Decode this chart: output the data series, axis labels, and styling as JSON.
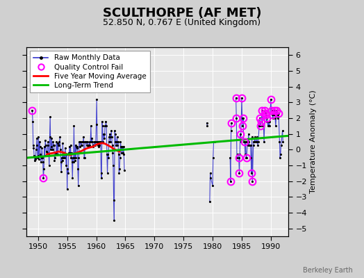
{
  "title": "SCULTHORPE (AF MET)",
  "subtitle": "52.850 N, 0.767 E (United Kingdom)",
  "ylabel": "Temperature Anomaly (°C)",
  "watermark": "Berkeley Earth",
  "xlim": [
    1948,
    1993
  ],
  "ylim": [
    -5.5,
    6.5
  ],
  "yticks": [
    -5,
    -4,
    -3,
    -2,
    -1,
    0,
    1,
    2,
    3,
    4,
    5,
    6
  ],
  "xticks": [
    1950,
    1955,
    1960,
    1965,
    1970,
    1975,
    1980,
    1985,
    1990
  ],
  "bg_color": "#d0d0d0",
  "plot_bg_color": "#e8e8e8",
  "grid_color": "white",
  "raw_color": "#3333cc",
  "qc_color": "#ff00ff",
  "ma_color": "red",
  "trend_color": "#00bb00",
  "raw_monthly": [
    [
      1949.0,
      2.5
    ],
    [
      1949.083,
      1.8
    ],
    [
      1949.167,
      0.3
    ],
    [
      1949.25,
      0.1
    ],
    [
      1949.333,
      -0.4
    ],
    [
      1949.417,
      -0.7
    ],
    [
      1949.5,
      -0.6
    ],
    [
      1949.583,
      -0.5
    ],
    [
      1949.667,
      0.0
    ],
    [
      1949.75,
      0.3
    ],
    [
      1949.833,
      0.7
    ],
    [
      1949.917,
      -0.5
    ],
    [
      1950.0,
      -0.4
    ],
    [
      1950.083,
      0.8
    ],
    [
      1950.167,
      -0.6
    ],
    [
      1950.25,
      0.5
    ],
    [
      1950.333,
      0.2
    ],
    [
      1950.417,
      -0.3
    ],
    [
      1950.5,
      -0.8
    ],
    [
      1950.583,
      -0.5
    ],
    [
      1950.667,
      0.1
    ],
    [
      1950.75,
      -0.5
    ],
    [
      1950.833,
      -0.8
    ],
    [
      1950.917,
      -1.8
    ],
    [
      1951.0,
      -1.2
    ],
    [
      1951.083,
      0.2
    ],
    [
      1951.167,
      -0.4
    ],
    [
      1951.25,
      0.6
    ],
    [
      1951.333,
      0.3
    ],
    [
      1951.417,
      -0.1
    ],
    [
      1951.5,
      -0.1
    ],
    [
      1951.583,
      -0.2
    ],
    [
      1951.667,
      0.3
    ],
    [
      1951.75,
      0.5
    ],
    [
      1951.833,
      -0.3
    ],
    [
      1951.917,
      -1.0
    ],
    [
      1952.0,
      0.8
    ],
    [
      1952.083,
      2.1
    ],
    [
      1952.167,
      0.0
    ],
    [
      1952.25,
      0.2
    ],
    [
      1952.333,
      0.7
    ],
    [
      1952.417,
      0.0
    ],
    [
      1952.5,
      0.0
    ],
    [
      1952.583,
      0.5
    ],
    [
      1952.667,
      0.3
    ],
    [
      1952.75,
      0.3
    ],
    [
      1952.833,
      -0.7
    ],
    [
      1952.917,
      -0.5
    ],
    [
      1953.0,
      -0.2
    ],
    [
      1953.083,
      -0.3
    ],
    [
      1953.167,
      0.5
    ],
    [
      1953.25,
      -0.3
    ],
    [
      1953.333,
      0.4
    ],
    [
      1953.417,
      -0.3
    ],
    [
      1953.5,
      0.3
    ],
    [
      1953.583,
      0.5
    ],
    [
      1953.667,
      0.3
    ],
    [
      1953.75,
      0.8
    ],
    [
      1953.833,
      0.0
    ],
    [
      1953.917,
      -0.8
    ],
    [
      1954.0,
      -1.4
    ],
    [
      1954.083,
      -0.5
    ],
    [
      1954.167,
      -0.7
    ],
    [
      1954.25,
      0.4
    ],
    [
      1954.333,
      -0.5
    ],
    [
      1954.417,
      -0.2
    ],
    [
      1954.5,
      -0.3
    ],
    [
      1954.583,
      -0.5
    ],
    [
      1954.667,
      0.1
    ],
    [
      1954.75,
      -0.3
    ],
    [
      1954.833,
      -1.0
    ],
    [
      1954.917,
      -0.3
    ],
    [
      1955.0,
      -2.5
    ],
    [
      1955.083,
      -1.2
    ],
    [
      1955.167,
      -1.5
    ],
    [
      1955.25,
      -0.2
    ],
    [
      1955.333,
      -0.3
    ],
    [
      1955.417,
      0.2
    ],
    [
      1955.5,
      -0.2
    ],
    [
      1955.583,
      0.3
    ],
    [
      1955.667,
      -0.5
    ],
    [
      1955.75,
      -0.2
    ],
    [
      1955.833,
      -0.8
    ],
    [
      1955.917,
      -1.8
    ],
    [
      1956.0,
      -0.5
    ],
    [
      1956.083,
      -0.8
    ],
    [
      1956.167,
      1.5
    ],
    [
      1956.25,
      -0.5
    ],
    [
      1956.333,
      -0.7
    ],
    [
      1956.417,
      0.3
    ],
    [
      1956.5,
      -0.5
    ],
    [
      1956.583,
      0.2
    ],
    [
      1956.667,
      0.1
    ],
    [
      1956.75,
      0.2
    ],
    [
      1956.833,
      -1.2
    ],
    [
      1956.917,
      -2.3
    ],
    [
      1957.0,
      -0.5
    ],
    [
      1957.083,
      0.5
    ],
    [
      1957.167,
      0.2
    ],
    [
      1957.25,
      0.5
    ],
    [
      1957.333,
      0.5
    ],
    [
      1957.417,
      0.3
    ],
    [
      1957.5,
      0.3
    ],
    [
      1957.583,
      0.5
    ],
    [
      1957.667,
      0.5
    ],
    [
      1957.75,
      0.5
    ],
    [
      1957.833,
      0.8
    ],
    [
      1957.917,
      -0.5
    ],
    [
      1958.0,
      -0.5
    ],
    [
      1958.083,
      0.5
    ],
    [
      1958.167,
      0.5
    ],
    [
      1958.25,
      0.5
    ],
    [
      1958.333,
      0.3
    ],
    [
      1958.417,
      0.5
    ],
    [
      1958.5,
      0.5
    ],
    [
      1958.583,
      0.3
    ],
    [
      1958.667,
      0.2
    ],
    [
      1958.75,
      0.2
    ],
    [
      1958.833,
      0.5
    ],
    [
      1958.917,
      0.3
    ],
    [
      1959.0,
      0.5
    ],
    [
      1959.083,
      1.5
    ],
    [
      1959.167,
      0.5
    ],
    [
      1959.25,
      0.7
    ],
    [
      1959.333,
      0.5
    ],
    [
      1959.417,
      0.2
    ],
    [
      1959.5,
      0.3
    ],
    [
      1959.583,
      0.3
    ],
    [
      1959.667,
      0.5
    ],
    [
      1959.75,
      0.5
    ],
    [
      1959.833,
      0.3
    ],
    [
      1959.917,
      0.5
    ],
    [
      1960.0,
      1.6
    ],
    [
      1960.083,
      3.2
    ],
    [
      1960.167,
      0.5
    ],
    [
      1960.25,
      0.3
    ],
    [
      1960.333,
      0.5
    ],
    [
      1960.417,
      0.2
    ],
    [
      1960.5,
      0.5
    ],
    [
      1960.583,
      0.3
    ],
    [
      1960.667,
      0.5
    ],
    [
      1960.75,
      0.5
    ],
    [
      1960.833,
      -1.5
    ],
    [
      1960.917,
      -1.8
    ],
    [
      1961.0,
      1.8
    ],
    [
      1961.083,
      1.5
    ],
    [
      1961.167,
      0.5
    ],
    [
      1961.25,
      1.0
    ],
    [
      1961.333,
      1.0
    ],
    [
      1961.417,
      0.7
    ],
    [
      1961.5,
      1.5
    ],
    [
      1961.583,
      1.5
    ],
    [
      1961.667,
      1.8
    ],
    [
      1961.75,
      1.5
    ],
    [
      1961.833,
      -0.3
    ],
    [
      1961.917,
      -1.5
    ],
    [
      1962.0,
      -0.3
    ],
    [
      1962.083,
      -0.5
    ],
    [
      1962.167,
      0.5
    ],
    [
      1962.25,
      0.8
    ],
    [
      1962.333,
      1.0
    ],
    [
      1962.417,
      0.5
    ],
    [
      1962.5,
      0.8
    ],
    [
      1962.583,
      1.2
    ],
    [
      1962.667,
      0.8
    ],
    [
      1962.75,
      0.3
    ],
    [
      1962.833,
      -0.2
    ],
    [
      1962.917,
      -1.0
    ],
    [
      1963.0,
      -3.2
    ],
    [
      1963.083,
      -4.5
    ],
    [
      1963.167,
      1.2
    ],
    [
      1963.25,
      1.0
    ],
    [
      1963.333,
      0.5
    ],
    [
      1963.417,
      0.3
    ],
    [
      1963.5,
      0.5
    ],
    [
      1963.583,
      0.8
    ],
    [
      1963.667,
      0.3
    ],
    [
      1963.75,
      0.5
    ],
    [
      1963.833,
      -0.3
    ],
    [
      1963.917,
      -1.5
    ],
    [
      1964.0,
      -1.2
    ],
    [
      1964.083,
      -0.5
    ],
    [
      1964.167,
      0.5
    ],
    [
      1964.25,
      0.2
    ],
    [
      1964.333,
      -0.2
    ],
    [
      1964.417,
      0.2
    ],
    [
      1964.5,
      0.2
    ],
    [
      1964.583,
      -0.2
    ],
    [
      1964.667,
      0.2
    ],
    [
      1964.75,
      -0.3
    ],
    [
      1964.833,
      -1.3
    ],
    [
      1979.0,
      1.7
    ],
    [
      1979.083,
      1.5
    ],
    [
      1979.5,
      -3.3
    ],
    [
      1979.583,
      -1.5
    ],
    [
      1979.667,
      -1.8
    ],
    [
      1980.0,
      -2.3
    ],
    [
      1980.083,
      -0.5
    ],
    [
      1980.167,
      0.5
    ],
    [
      1980.25,
      0.5
    ],
    [
      1980.333,
      0.5
    ],
    [
      1983.0,
      -0.5
    ],
    [
      1983.083,
      -2.0
    ],
    [
      1983.167,
      1.2
    ],
    [
      1983.25,
      1.7
    ],
    [
      1984.0,
      3.3
    ],
    [
      1984.083,
      2.0
    ],
    [
      1984.167,
      -0.5
    ],
    [
      1984.25,
      -0.3
    ],
    [
      1984.333,
      -0.3
    ],
    [
      1984.5,
      -0.5
    ],
    [
      1984.583,
      -1.5
    ],
    [
      1984.667,
      -0.3
    ],
    [
      1984.75,
      1.0
    ],
    [
      1984.833,
      0.5
    ],
    [
      1985.0,
      3.3
    ],
    [
      1985.083,
      2.0
    ],
    [
      1985.167,
      1.5
    ],
    [
      1985.25,
      2.0
    ],
    [
      1985.333,
      0.5
    ],
    [
      1985.5,
      0.5
    ],
    [
      1985.583,
      -0.3
    ],
    [
      1985.667,
      0.5
    ],
    [
      1985.75,
      -0.5
    ],
    [
      1985.833,
      -0.5
    ],
    [
      1986.0,
      0.5
    ],
    [
      1986.083,
      0.3
    ],
    [
      1986.167,
      1.0
    ],
    [
      1986.25,
      0.5
    ],
    [
      1986.333,
      0.3
    ],
    [
      1986.5,
      0.3
    ],
    [
      1986.583,
      -0.5
    ],
    [
      1986.667,
      -1.5
    ],
    [
      1986.75,
      0.8
    ],
    [
      1986.833,
      -2.0
    ],
    [
      1987.0,
      0.3
    ],
    [
      1987.083,
      0.5
    ],
    [
      1987.167,
      0.5
    ],
    [
      1987.25,
      0.8
    ],
    [
      1987.333,
      0.5
    ],
    [
      1987.5,
      0.5
    ],
    [
      1987.583,
      0.8
    ],
    [
      1987.667,
      0.5
    ],
    [
      1987.75,
      0.3
    ],
    [
      1987.833,
      0.5
    ],
    [
      1988.0,
      1.5
    ],
    [
      1988.083,
      2.0
    ],
    [
      1988.167,
      1.5
    ],
    [
      1988.25,
      1.5
    ],
    [
      1988.333,
      1.8
    ],
    [
      1988.5,
      2.5
    ],
    [
      1988.583,
      1.5
    ],
    [
      1988.667,
      1.5
    ],
    [
      1988.75,
      1.5
    ],
    [
      1988.833,
      0.5
    ],
    [
      1989.0,
      2.5
    ],
    [
      1989.083,
      2.3
    ],
    [
      1989.167,
      2.2
    ],
    [
      1989.25,
      1.8
    ],
    [
      1989.333,
      2.0
    ],
    [
      1989.5,
      1.5
    ],
    [
      1989.583,
      1.8
    ],
    [
      1989.667,
      1.5
    ],
    [
      1989.75,
      1.5
    ],
    [
      1989.833,
      1.8
    ],
    [
      1990.0,
      3.2
    ],
    [
      1990.083,
      2.5
    ],
    [
      1990.167,
      2.5
    ],
    [
      1990.25,
      2.2
    ],
    [
      1990.333,
      2.0
    ],
    [
      1990.5,
      2.2
    ],
    [
      1990.583,
      2.5
    ],
    [
      1990.667,
      2.2
    ],
    [
      1990.75,
      2.0
    ],
    [
      1990.833,
      1.5
    ],
    [
      1991.0,
      2.5
    ],
    [
      1991.083,
      2.2
    ],
    [
      1991.167,
      2.0
    ],
    [
      1991.25,
      2.2
    ],
    [
      1991.333,
      2.3
    ],
    [
      1991.5,
      0.5
    ],
    [
      1991.583,
      -0.5
    ],
    [
      1991.667,
      -0.3
    ],
    [
      1991.75,
      0.3
    ],
    [
      1992.0,
      1.2
    ],
    [
      1992.083,
      0.5
    ]
  ],
  "qc_fail": [
    [
      1949.0,
      2.5
    ],
    [
      1950.917,
      -1.8
    ],
    [
      1984.0,
      3.3
    ],
    [
      1985.0,
      3.3
    ],
    [
      1985.25,
      2.0
    ],
    [
      1984.083,
      2.0
    ],
    [
      1983.083,
      -2.0
    ],
    [
      1983.25,
      1.7
    ],
    [
      1986.667,
      -1.5
    ],
    [
      1986.833,
      -2.0
    ],
    [
      1988.5,
      2.5
    ],
    [
      1989.0,
      2.5
    ],
    [
      1989.083,
      2.3
    ],
    [
      1989.167,
      2.2
    ],
    [
      1989.333,
      2.0
    ],
    [
      1988.333,
      1.8
    ],
    [
      1990.0,
      3.2
    ],
    [
      1990.583,
      2.5
    ],
    [
      1991.0,
      2.5
    ],
    [
      1991.333,
      2.3
    ],
    [
      1988.083,
      2.0
    ],
    [
      1988.167,
      1.5
    ],
    [
      1990.167,
      2.5
    ],
    [
      1990.25,
      2.2
    ],
    [
      1985.167,
      1.5
    ],
    [
      1984.75,
      1.0
    ],
    [
      1985.5,
      0.5
    ],
    [
      1984.5,
      -0.5
    ],
    [
      1984.583,
      -1.5
    ],
    [
      1985.833,
      -0.5
    ]
  ],
  "moving_avg": [
    [
      1951.5,
      -0.3
    ],
    [
      1952.0,
      -0.25
    ],
    [
      1952.5,
      -0.22
    ],
    [
      1953.0,
      -0.18
    ],
    [
      1953.5,
      -0.12
    ],
    [
      1954.0,
      -0.15
    ],
    [
      1954.5,
      -0.2
    ],
    [
      1955.0,
      -0.3
    ],
    [
      1955.5,
      -0.35
    ],
    [
      1956.0,
      -0.28
    ],
    [
      1956.5,
      -0.22
    ],
    [
      1957.0,
      -0.15
    ],
    [
      1957.5,
      -0.08
    ],
    [
      1958.0,
      0.02
    ],
    [
      1958.5,
      0.1
    ],
    [
      1959.0,
      0.15
    ],
    [
      1959.5,
      0.2
    ],
    [
      1960.0,
      0.32
    ],
    [
      1960.5,
      0.38
    ],
    [
      1961.0,
      0.42
    ],
    [
      1961.5,
      0.38
    ],
    [
      1962.0,
      0.28
    ],
    [
      1962.5,
      0.18
    ],
    [
      1963.0,
      0.05
    ],
    [
      1963.5,
      -0.05
    ],
    [
      1964.0,
      -0.12
    ]
  ],
  "trend_x": [
    1948,
    1993
  ],
  "trend_y": [
    -0.52,
    0.88
  ],
  "title_fontsize": 13,
  "subtitle_fontsize": 9,
  "tick_fontsize": 8,
  "legend_fontsize": 7.5,
  "watermark_fontsize": 7
}
